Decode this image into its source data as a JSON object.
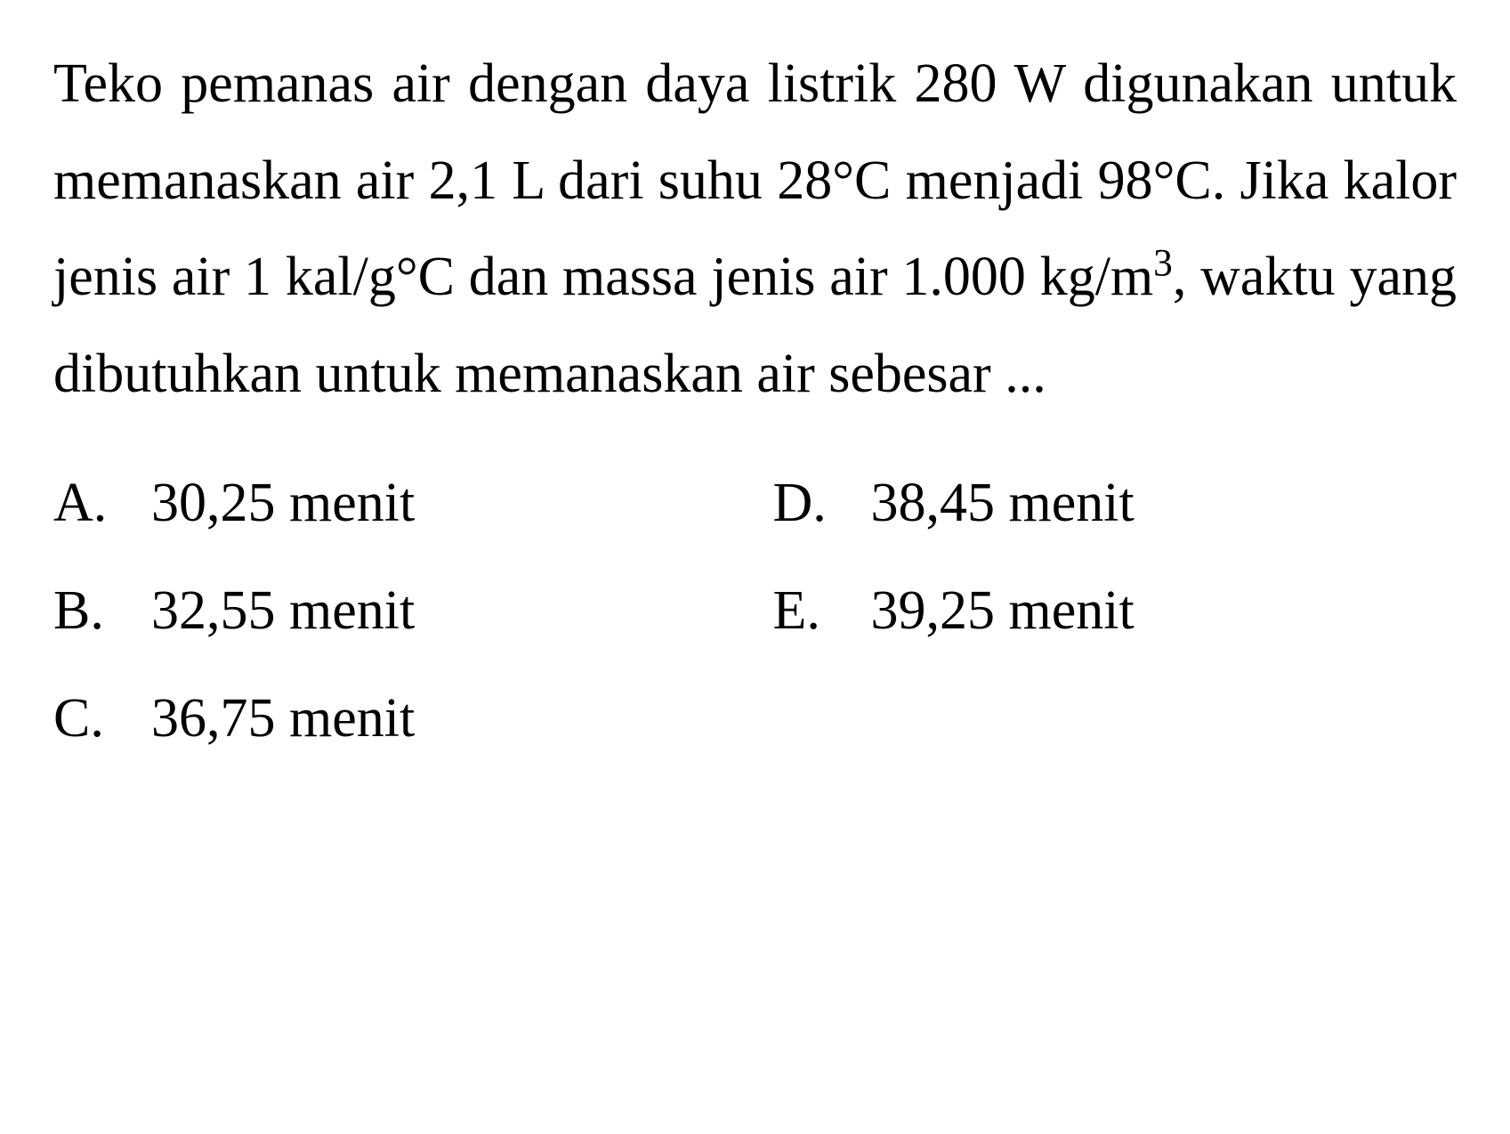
{
  "question": {
    "segments": [
      "Teko pemanas air dengan daya listrik 280 W digunakan untuk memanaskan air 2,1 L dari suhu 28°C menjadi 98°C. Jika kalor jenis air 1 kal/g°C dan massa jenis air 1.000 kg/m",
      "3",
      ", waktu yang dibutuhkan untuk memanaskan air sebesar ..."
    ]
  },
  "options": {
    "a": {
      "letter": "A.",
      "text": "30,25 menit"
    },
    "b": {
      "letter": "B.",
      "text": "32,55 menit"
    },
    "c": {
      "letter": "C.",
      "text": "36,75 menit"
    },
    "d": {
      "letter": "D.",
      "text": "38,45 menit"
    },
    "e": {
      "letter": "E.",
      "text": "39,25 menit"
    }
  },
  "style": {
    "font_family": "Times New Roman",
    "font_size_pt": 46,
    "text_color": "#000000",
    "background_color": "#ffffff"
  }
}
